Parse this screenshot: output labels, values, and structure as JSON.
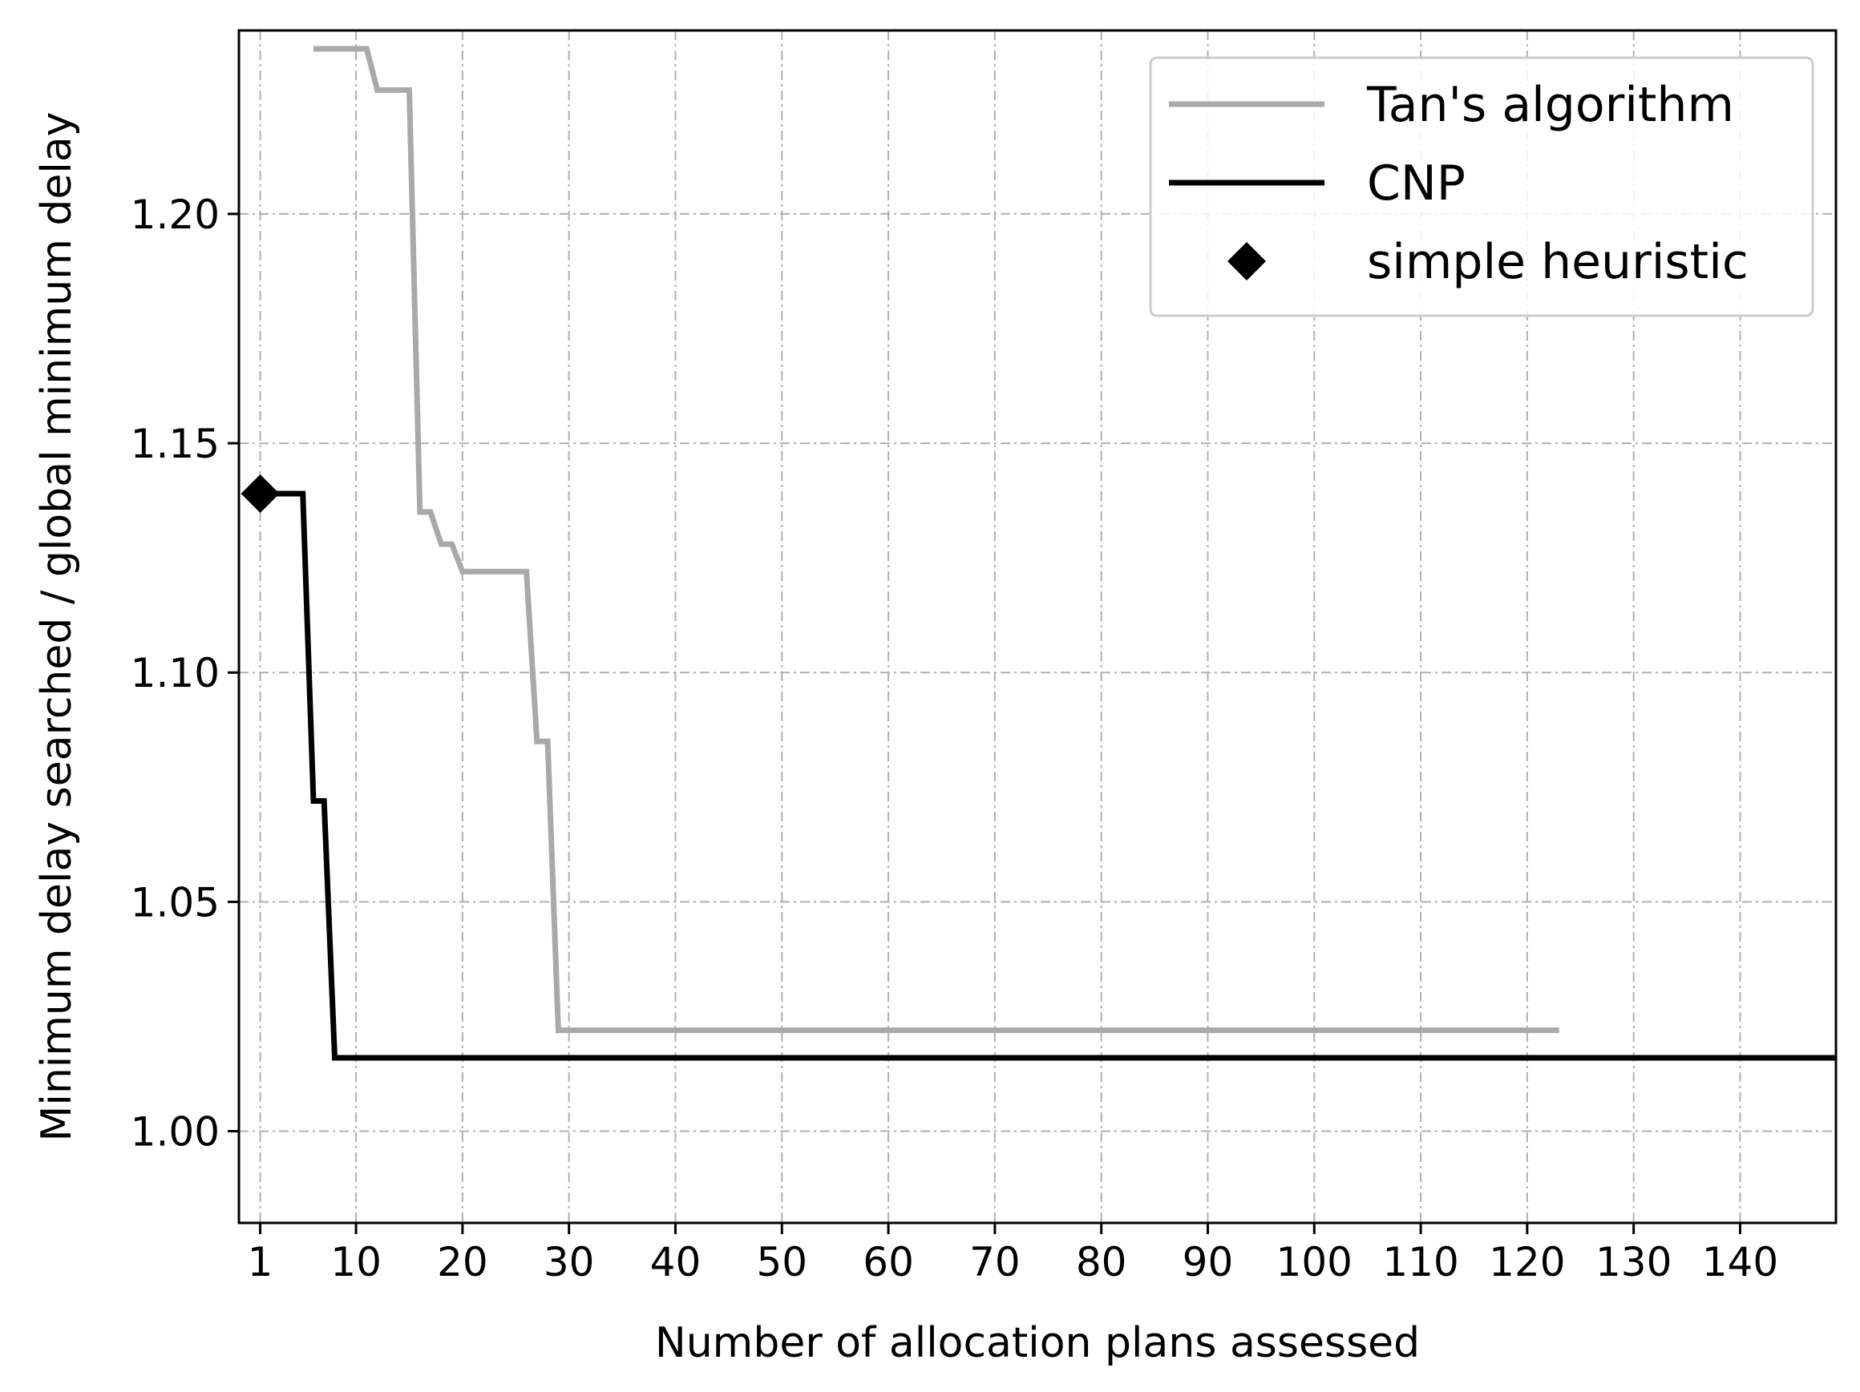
{
  "chart_data": {
    "type": "line",
    "title": "",
    "xlabel": "Number of allocation plans assessed",
    "ylabel": "Minimum delay searched / global minimum delay",
    "xlim": [
      -1,
      149
    ],
    "ylim": [
      0.98,
      1.24
    ],
    "x_ticks": [
      1,
      10,
      20,
      30,
      40,
      50,
      60,
      70,
      80,
      90,
      100,
      110,
      120,
      130,
      140
    ],
    "x_tick_labels": [
      "1",
      "10",
      "20",
      "30",
      "40",
      "50",
      "60",
      "70",
      "80",
      "90",
      "100",
      "110",
      "120",
      "130",
      "140"
    ],
    "y_ticks": [
      1.0,
      1.05,
      1.1,
      1.15,
      1.2
    ],
    "y_tick_labels": [
      "1.00",
      "1.05",
      "1.10",
      "1.15",
      "1.20"
    ],
    "grid": true,
    "legend_position": "top-right",
    "series": [
      {
        "name": "Tan's algorithm",
        "color": "#a9a9a9",
        "style": "line",
        "x": [
          6,
          11,
          12,
          15,
          16,
          17,
          18,
          19,
          20,
          26,
          27,
          28,
          29,
          123
        ],
        "y": [
          1.236,
          1.236,
          1.227,
          1.227,
          1.135,
          1.135,
          1.128,
          1.128,
          1.122,
          1.122,
          1.085,
          1.085,
          1.022,
          1.022
        ]
      },
      {
        "name": "CNP",
        "color": "#000000",
        "style": "line",
        "x": [
          1,
          5,
          6,
          7,
          8,
          9,
          149
        ],
        "y": [
          1.139,
          1.139,
          1.072,
          1.072,
          1.016,
          1.016,
          1.016
        ]
      },
      {
        "name": "simple heuristic",
        "color": "#000000",
        "style": "marker",
        "marker": "diamond",
        "x": [
          1
        ],
        "y": [
          1.139
        ]
      }
    ]
  }
}
